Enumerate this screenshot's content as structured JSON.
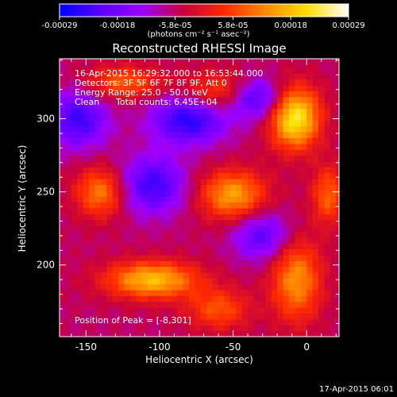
{
  "chart_data": {
    "type": "heatmap",
    "title": "Reconstructed RHESSI Image",
    "xlabel": "Heliocentric X (arcsec)",
    "ylabel": "Heliocentric Y (arcsec)",
    "xlim": [
      -168,
      22
    ],
    "ylim": [
      151,
      341
    ],
    "x_ticks": [
      -150,
      -100,
      -50,
      0
    ],
    "y_ticks": [
      200,
      250,
      300
    ],
    "colorbar": {
      "range": [
        -0.00029,
        0.00029
      ],
      "ticks": [
        "-0.00029",
        "-0.00018",
        "-5.8e-05",
        "5.8e-05",
        "0.00018",
        "0.00029"
      ],
      "units_label": "(photons cm⁻² s⁻¹ asec⁻²)",
      "colormap": [
        "#0000ff",
        "#5a00ff",
        "#9b00ff",
        "#c8003c",
        "#ff2a00",
        "#ff8c00",
        "#ffe000",
        "#ffffff"
      ]
    },
    "annotations": [
      "16-Apr-2015 16:29:32.000 to 16:53:44.000",
      "Detectors: 3F 5F 6F 7F 8F 9F, Att 0",
      "Energy Range: 25.0 - 50.0 keV",
      "Clean",
      "Total counts: 6.45E+04"
    ],
    "peak_label": "Position of Peak = [-8,301]",
    "peak": [
      -8,
      301
    ],
    "sources": [
      {
        "x": -8,
        "y": 301,
        "level": 1.0,
        "sx": 12,
        "sy": 15
      },
      {
        "x": -55,
        "y": 318,
        "level": 0.55,
        "sx": 20,
        "sy": 10
      },
      {
        "x": -50,
        "y": 248,
        "level": 0.7,
        "sx": 16,
        "sy": 12
      },
      {
        "x": -140,
        "y": 250,
        "level": 0.6,
        "sx": 12,
        "sy": 12
      },
      {
        "x": -105,
        "y": 190,
        "level": 0.8,
        "sx": 22,
        "sy": 9
      },
      {
        "x": -7,
        "y": 190,
        "level": 0.65,
        "sx": 12,
        "sy": 20
      },
      {
        "x": -125,
        "y": 325,
        "level": 0.5,
        "sx": 18,
        "sy": 8
      },
      {
        "x": 15,
        "y": 248,
        "level": 0.5,
        "sx": 8,
        "sy": 14
      },
      {
        "x": -60,
        "y": 170,
        "level": 0.45,
        "sx": 15,
        "sy": 10
      },
      {
        "x": -80,
        "y": 300,
        "level": -0.7,
        "sx": 18,
        "sy": 12
      },
      {
        "x": -35,
        "y": 315,
        "level": -0.8,
        "sx": 14,
        "sy": 10
      },
      {
        "x": -105,
        "y": 255,
        "level": -0.6,
        "sx": 16,
        "sy": 14
      },
      {
        "x": -155,
        "y": 300,
        "level": -0.6,
        "sx": 14,
        "sy": 14
      },
      {
        "x": -30,
        "y": 220,
        "level": -0.5,
        "sx": 14,
        "sy": 12
      }
    ],
    "baseline_level": -0.2
  },
  "footer_timestamp": "17-Apr-2015 06:01"
}
